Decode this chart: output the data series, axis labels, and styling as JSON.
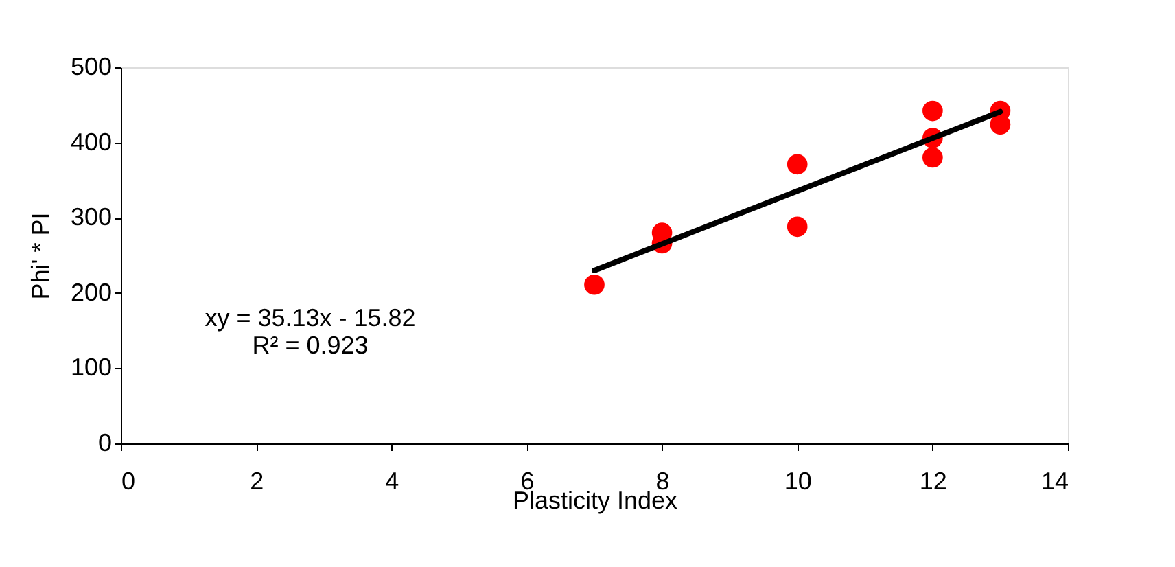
{
  "chart_data": {
    "type": "scatter",
    "xlabel": "Plasticity Index",
    "ylabel": "Phi' * PI",
    "xlim": [
      0,
      14
    ],
    "xticks": [
      0,
      2,
      4,
      6,
      8,
      10,
      12,
      14
    ],
    "ylim": [
      0,
      500
    ],
    "yticks": [
      0,
      100,
      200,
      300,
      400,
      500
    ],
    "grid": false,
    "marker": "circle",
    "annotations": [
      "xy = 35.13x - 15.82",
      "R² = 0.923"
    ],
    "series": [
      {
        "color": "#ff0000",
        "x": [
          7,
          8,
          8,
          10,
          10,
          12,
          12,
          12,
          13,
          13
        ],
        "values": [
          211,
          280,
          266,
          371,
          288,
          442,
          406,
          380,
          442,
          424
        ]
      },
      {
        "type": "line",
        "color": "#000000",
        "x": [
          7,
          13
        ],
        "values": [
          230,
          441
        ],
        "line_style": "solid",
        "marker": "none"
      }
    ]
  }
}
